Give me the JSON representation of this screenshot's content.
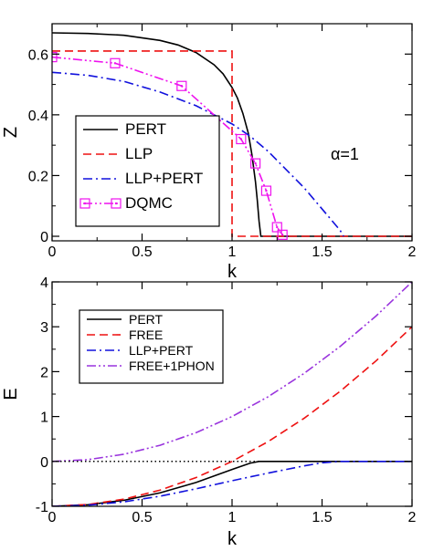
{
  "chart_data": [
    {
      "type": "line",
      "xlabel": "k",
      "ylabel": "Z",
      "xlim": [
        0,
        2
      ],
      "ylim": [
        -0.015,
        0.7
      ],
      "x_ticks": [
        0,
        0.5,
        1,
        1.5,
        2
      ],
      "x_tick_labels": [
        "0",
        "0.5",
        "1",
        "1.5",
        "2"
      ],
      "y_ticks": [
        0,
        0.2,
        0.4,
        0.6
      ],
      "y_tick_labels": [
        "0",
        "0.2",
        "0.4",
        "0.6"
      ],
      "annotation": "α=1",
      "legend_position": "center-left",
      "series": [
        {
          "name": "PERT",
          "color": "#000000",
          "dash": "solid",
          "x": [
            0,
            0.2,
            0.4,
            0.6,
            0.7,
            0.8,
            0.9,
            0.95,
            1.0,
            1.03,
            1.06,
            1.09,
            1.11,
            1.13,
            1.14,
            1.15,
            1.16,
            2.0
          ],
          "y": [
            0.67,
            0.668,
            0.662,
            0.645,
            0.63,
            0.605,
            0.565,
            0.535,
            0.49,
            0.455,
            0.405,
            0.34,
            0.27,
            0.18,
            0.12,
            0.05,
            0.0,
            0.0
          ]
        },
        {
          "name": "LLP",
          "color": "#ee1111",
          "dash": "dashed",
          "x": [
            0,
            1.0,
            1.0,
            2.0
          ],
          "y": [
            0.61,
            0.61,
            0.0,
            0.0
          ]
        },
        {
          "name": "LLP+PERT",
          "color": "#1111dd",
          "dash": "dashdot",
          "x": [
            0,
            0.2,
            0.4,
            0.6,
            0.8,
            1.0,
            1.1,
            1.2,
            1.3,
            1.4,
            1.5,
            1.55,
            1.6,
            1.62
          ],
          "y": [
            0.54,
            0.53,
            0.51,
            0.475,
            0.43,
            0.37,
            0.33,
            0.28,
            0.22,
            0.16,
            0.09,
            0.055,
            0.02,
            0.0
          ]
        },
        {
          "name": "DQMC",
          "color": "#ee11ee",
          "dash": "dashdotdot",
          "marker": "square-dot",
          "x": [
            0.0,
            0.35,
            0.72,
            1.05,
            1.13,
            1.19,
            1.25,
            1.28
          ],
          "y": [
            0.59,
            0.57,
            0.495,
            0.32,
            0.24,
            0.15,
            0.03,
            0.005
          ]
        }
      ]
    },
    {
      "type": "line",
      "xlabel": "k",
      "ylabel": "E",
      "xlim": [
        0,
        2
      ],
      "ylim": [
        -1,
        4
      ],
      "x_ticks": [
        0,
        0.5,
        1,
        1.5,
        2
      ],
      "x_tick_labels": [
        "0",
        "0.5",
        "1",
        "1.5",
        "2"
      ],
      "y_ticks": [
        -1,
        0,
        1,
        2,
        3,
        4
      ],
      "y_tick_labels": [
        "-1",
        "0",
        "1",
        "2",
        "3",
        "4"
      ],
      "legend_position": "top-left",
      "series": [
        {
          "name": "PERT",
          "color": "#000000",
          "dash": "solid",
          "x": [
            0,
            0.2,
            0.4,
            0.6,
            0.8,
            1.0,
            1.1,
            1.15,
            2.0
          ],
          "y": [
            -1.0,
            -0.965,
            -0.865,
            -0.7,
            -0.47,
            -0.18,
            -0.04,
            0.0,
            0.0
          ]
        },
        {
          "name": "FREE",
          "color": "#ee1111",
          "dash": "dashed",
          "x": [
            0,
            0.2,
            0.4,
            0.6,
            0.8,
            1.0,
            1.2,
            1.4,
            1.6,
            1.8,
            2.0
          ],
          "y": [
            -1.0,
            -0.96,
            -0.84,
            -0.64,
            -0.36,
            0.0,
            0.44,
            0.96,
            1.56,
            2.24,
            3.0
          ]
        },
        {
          "name": "LLP+PERT",
          "color": "#1111dd",
          "dash": "dashdot",
          "x": [
            0,
            0.2,
            0.4,
            0.6,
            0.8,
            1.0,
            1.2,
            1.4,
            1.5,
            1.6,
            2.0
          ],
          "y": [
            -1.0,
            -0.975,
            -0.9,
            -0.775,
            -0.61,
            -0.43,
            -0.26,
            -0.1,
            -0.03,
            0.0,
            0.0
          ]
        },
        {
          "name": "FREE+1PHON",
          "color": "#9933dd",
          "dash": "dashdotdot",
          "x": [
            0,
            0.2,
            0.4,
            0.6,
            0.8,
            1.0,
            1.2,
            1.4,
            1.6,
            1.8,
            2.0
          ],
          "y": [
            0.0,
            0.04,
            0.16,
            0.36,
            0.64,
            1.0,
            1.44,
            1.96,
            2.56,
            3.24,
            4.0
          ]
        },
        {
          "name": "",
          "color": "#000000",
          "dash": "dotted",
          "x": [
            0,
            1.15
          ],
          "y": [
            0,
            0
          ]
        }
      ]
    }
  ]
}
